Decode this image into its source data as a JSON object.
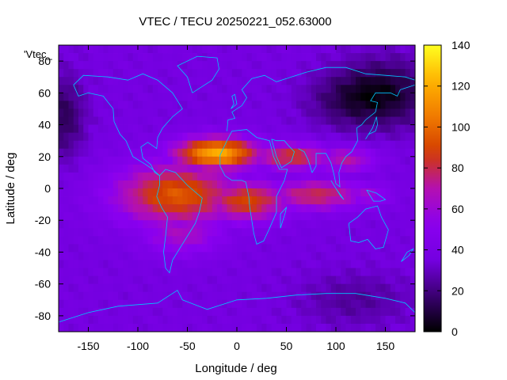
{
  "chart_data": {
    "type": "heatmap",
    "title": "VTEC / TECU 20250221_052.63000",
    "series_key": "'Vtec_",
    "xlabel": "Longitude / deg",
    "ylabel": "Latitude / deg",
    "xlim": [
      -180,
      180
    ],
    "ylim": [
      -90,
      90
    ],
    "x_ticks": [
      -150,
      -100,
      -50,
      0,
      50,
      100,
      150
    ],
    "y_ticks": [
      -80,
      -60,
      -40,
      -20,
      0,
      20,
      40,
      60,
      80
    ],
    "colorbar": {
      "range": [
        0,
        140
      ],
      "ticks": [
        0,
        20,
        40,
        60,
        80,
        100,
        120,
        140
      ],
      "palette": [
        "#000000",
        "#3a0070",
        "#7400e0",
        "#8a00f0",
        "#b410b0",
        "#d23c00",
        "#f07a00",
        "#ffb200",
        "#ffff20"
      ]
    },
    "features": [
      {
        "lat": 22,
        "lon": -20,
        "peak_tecu": 120,
        "sigma_lat": 7,
        "sigma_lon": 30
      },
      {
        "lat": 20,
        "lon": 55,
        "peak_tecu": 85,
        "sigma_lat": 6,
        "sigma_lon": 28
      },
      {
        "lat": 18,
        "lon": 110,
        "peak_tecu": 70,
        "sigma_lat": 6,
        "sigma_lon": 22
      },
      {
        "lat": -4,
        "lon": -60,
        "peak_tecu": 95,
        "sigma_lat": 14,
        "sigma_lon": 45
      },
      {
        "lat": -8,
        "lon": 10,
        "peak_tecu": 90,
        "sigma_lat": 9,
        "sigma_lon": 30
      },
      {
        "lat": -4,
        "lon": 80,
        "peak_tecu": 80,
        "sigma_lat": 7,
        "sigma_lon": 35
      },
      {
        "lat": -4,
        "lon": 130,
        "peak_tecu": 60,
        "sigma_lat": 6,
        "sigma_lon": 18
      },
      {
        "lat": -28,
        "lon": -55,
        "peak_tecu": 65,
        "sigma_lat": 10,
        "sigma_lon": 30
      }
    ],
    "background_tecu": 36,
    "low_regions": [
      {
        "lat": 60,
        "lon": 150,
        "depth_tecu": 28,
        "sigma_lat": 15,
        "sigma_lon": 35
      },
      {
        "lat": 45,
        "lon": -175,
        "depth_tecu": 22,
        "sigma_lat": 18,
        "sigma_lon": 15
      },
      {
        "lat": 55,
        "lon": 110,
        "depth_tecu": 14,
        "sigma_lat": 12,
        "sigma_lon": 30
      },
      {
        "lat": -70,
        "lon": 120,
        "depth_tecu": 12,
        "sigma_lat": 12,
        "sigma_lon": 40
      }
    ]
  }
}
